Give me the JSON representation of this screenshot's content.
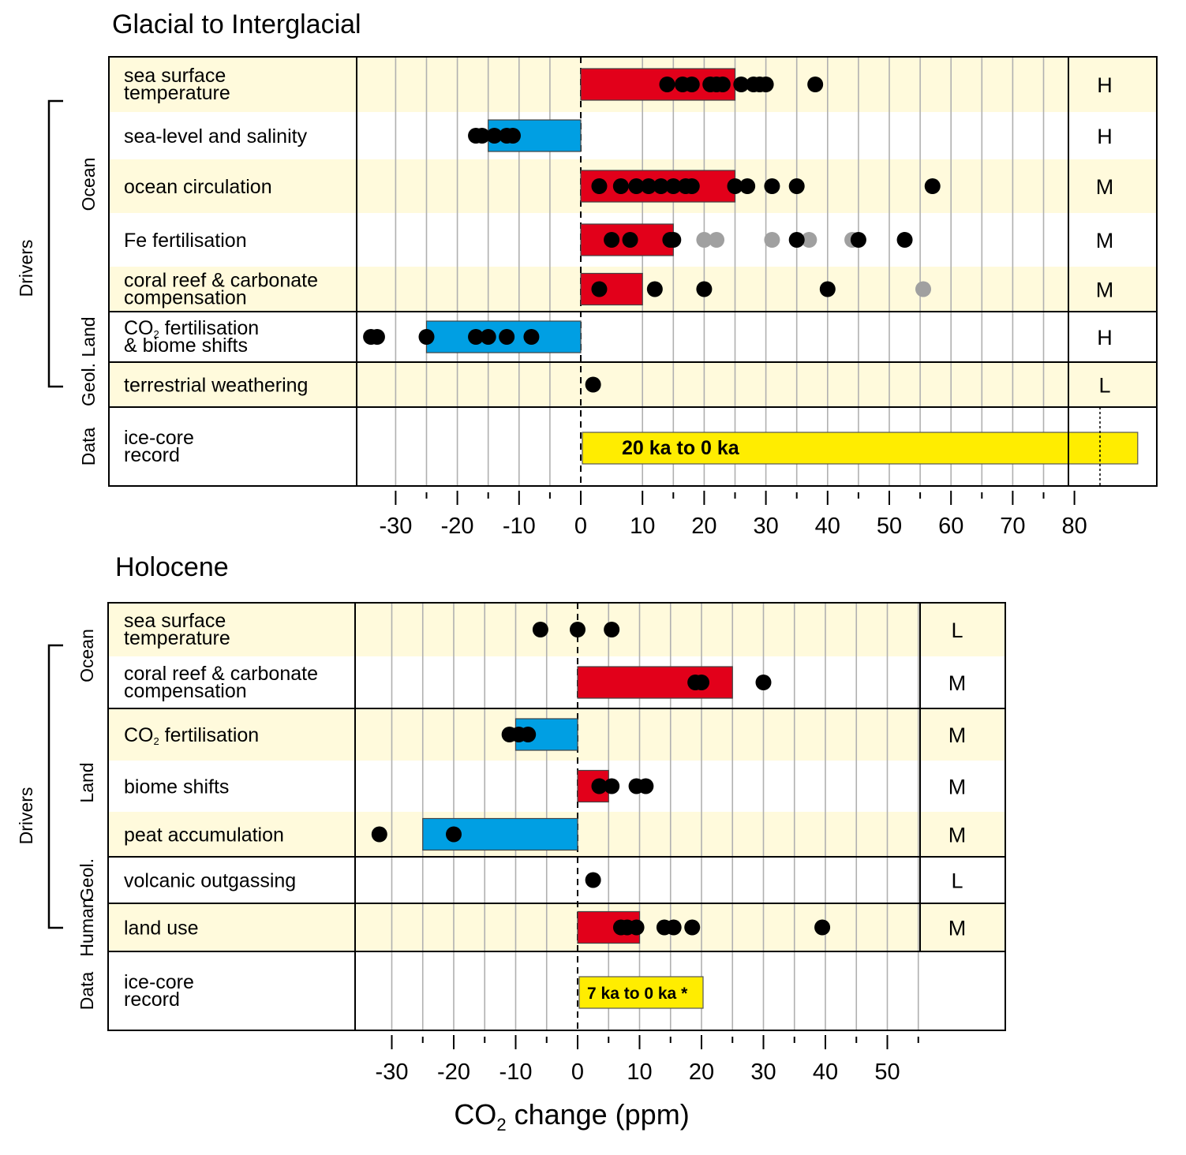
{
  "colors": {
    "positive_bar": "#e2001a",
    "negative_bar": "#009fe3",
    "data_bar": "#ffed00",
    "band": "#fffadc",
    "point": "#000000",
    "point_grey": "#a0a0a0",
    "grid": "#b0b0b0"
  },
  "chart_data": [
    {
      "type": "bar",
      "title": "Glacial to Interglacial",
      "xlabel": "CO2 change (ppm)",
      "xlim": [
        -36,
        92
      ],
      "x_ticks_major": [
        -30,
        -20,
        -10,
        0,
        10,
        20,
        30,
        40,
        50,
        60,
        70,
        80
      ],
      "tick_labels": [
        "-30",
        "-20",
        "-10",
        "0",
        "10",
        "20",
        "30",
        "40",
        "50",
        "60",
        "70",
        "80"
      ],
      "side_label": "Drivers",
      "groups": [
        {
          "label": "Ocean",
          "rows": [
            0,
            1,
            2,
            3,
            4
          ]
        },
        {
          "label": "Land",
          "rows": [
            5
          ]
        },
        {
          "label": "Geol.",
          "rows": [
            6
          ]
        },
        {
          "label": "Data",
          "rows": [
            7
          ]
        }
      ],
      "rows": [
        {
          "label_lines": [
            "sea surface",
            "temperature"
          ],
          "confidence": "H",
          "bar": [
            0,
            25
          ],
          "points": [
            14,
            16.5,
            18,
            21,
            22,
            23,
            26,
            28,
            29,
            30,
            38
          ],
          "grey_points": []
        },
        {
          "label_lines": [
            "sea-level and salinity"
          ],
          "confidence": "H",
          "bar": [
            -15,
            0
          ],
          "points": [
            -17,
            -16,
            -14,
            -12,
            -11
          ],
          "grey_points": []
        },
        {
          "label_lines": [
            "ocean circulation"
          ],
          "confidence": "M",
          "bar": [
            0,
            25
          ],
          "points": [
            3,
            6.5,
            9,
            11,
            13,
            15,
            17,
            18,
            25,
            27,
            31,
            35,
            57
          ],
          "grey_points": []
        },
        {
          "label_lines": [
            "Fe fertilisation"
          ],
          "confidence": "M",
          "bar": [
            0,
            15
          ],
          "points": [
            5,
            8,
            14.5,
            15,
            35,
            45,
            52.5
          ],
          "grey_points": [
            20,
            22,
            31,
            37,
            44
          ]
        },
        {
          "label_lines": [
            "coral reef & carbonate",
            "compensation"
          ],
          "confidence": "M",
          "bar": [
            0,
            10
          ],
          "points": [
            3,
            12,
            20,
            40
          ],
          "grey_points": [
            55.5
          ]
        },
        {
          "label_lines": [
            "CO2 fertilisation",
            "& biome shifts"
          ],
          "confidence": "H",
          "bar": [
            -25,
            0
          ],
          "points": [
            -34,
            -33,
            -25,
            -17,
            -15,
            -12,
            -8
          ],
          "grey_points": []
        },
        {
          "label_lines": [
            "terrestrial weathering"
          ],
          "confidence": "L",
          "bar": null,
          "points": [
            2
          ],
          "grey_points": []
        },
        {
          "label_lines": [
            "ice-core",
            "record"
          ],
          "confidence": "",
          "bar": null,
          "points": [],
          "grey_points": [],
          "data_bar": [
            0,
            90
          ],
          "data_bar_label": "20 ka to 0 ka"
        }
      ]
    },
    {
      "type": "bar",
      "title": "Holocene",
      "xlabel": "CO2 change (ppm)",
      "xlim": [
        -36,
        69
      ],
      "x_ticks_major": [
        -30,
        -20,
        -10,
        0,
        10,
        20,
        30,
        40,
        50
      ],
      "tick_labels": [
        "-30",
        "-20",
        "-10",
        "0",
        "10",
        "20",
        "30",
        "40",
        "50"
      ],
      "side_label": "Drivers",
      "groups": [
        {
          "label": "Ocean",
          "rows": [
            0,
            1
          ]
        },
        {
          "label": "Land",
          "rows": [
            2,
            3,
            4
          ]
        },
        {
          "label": "Geol.",
          "rows": [
            5
          ]
        },
        {
          "label": "Human",
          "rows": [
            6
          ]
        },
        {
          "label": "Data",
          "rows": [
            7
          ]
        }
      ],
      "rows": [
        {
          "label_lines": [
            "sea surface",
            "temperature"
          ],
          "confidence": "L",
          "bar": null,
          "points": [
            -6,
            0,
            5.5
          ],
          "grey_points": []
        },
        {
          "label_lines": [
            "coral reef & carbonate",
            "compensation"
          ],
          "confidence": "M",
          "bar": [
            0,
            25
          ],
          "points": [
            19,
            20,
            30
          ],
          "grey_points": []
        },
        {
          "label_lines": [
            "CO2 fertilisation"
          ],
          "confidence": "M",
          "bar": [
            -10,
            0
          ],
          "points": [
            -11,
            -9.5,
            -8
          ],
          "grey_points": []
        },
        {
          "label_lines": [
            "biome shifts"
          ],
          "confidence": "M",
          "bar": [
            0,
            5
          ],
          "points": [
            3.5,
            5.5,
            9.5,
            11
          ],
          "grey_points": []
        },
        {
          "label_lines": [
            "peat accumulation"
          ],
          "confidence": "M",
          "bar": [
            -25,
            0
          ],
          "points": [
            -32,
            -20
          ],
          "grey_points": []
        },
        {
          "label_lines": [
            "volcanic outgassing"
          ],
          "confidence": "L",
          "bar": null,
          "points": [
            2.5
          ],
          "grey_points": []
        },
        {
          "label_lines": [
            "land use"
          ],
          "confidence": "M",
          "bar": [
            0,
            10
          ],
          "points": [
            7,
            8,
            9.5,
            14,
            15.5,
            18.5,
            39.5
          ],
          "grey_points": []
        },
        {
          "label_lines": [
            "ice-core",
            "record"
          ],
          "confidence": "",
          "bar": null,
          "points": [],
          "grey_points": [],
          "data_bar": [
            0,
            20
          ],
          "data_bar_label": "7 ka to 0 ka *"
        }
      ]
    }
  ],
  "page": {
    "title_top": "Glacial to Interglacial",
    "title_bottom": "Holocene",
    "xlabel_main": "CO",
    "xlabel_sub": "2",
    "xlabel_rest": " change (ppm)"
  }
}
